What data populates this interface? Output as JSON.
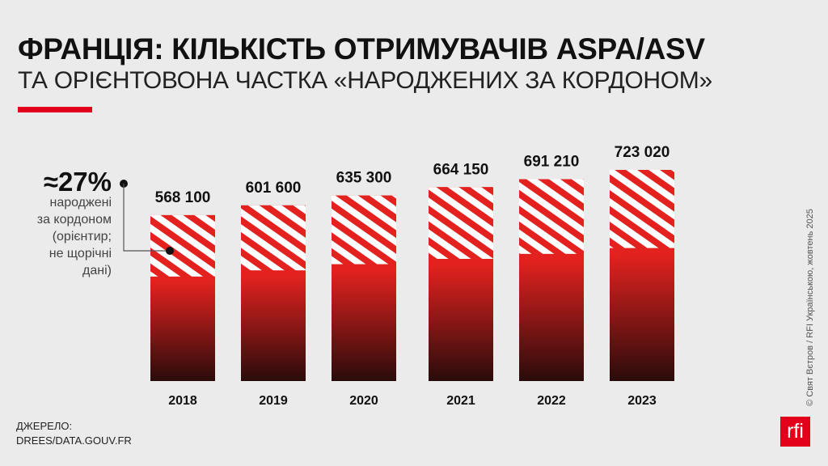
{
  "title": "ФРАНЦІЯ: КІЛЬКІСТЬ ОТРИМУВАЧІВ ASPA/ASV",
  "subtitle": "ТА ОРІЄНТОВОНА ЧАСТКА «НАРОДЖЕНИХ ЗА КОРДОНОМ»",
  "annotation": {
    "value": "≈27%",
    "lines": [
      "народжені",
      "за кордоном",
      "(орієнтир;",
      "не щорічні",
      "дані)"
    ]
  },
  "source": {
    "label": "ДЖЕРЕЛО:",
    "value": "DREES/DATA.GOUV.FR"
  },
  "credit": "© Свят Вєтров / RFI Українською, жовтень 2025",
  "logo": "rfi",
  "colors": {
    "bar": "#e3001b",
    "hatch": "#e3221f",
    "bg": "#ebebeb"
  },
  "chart_data": {
    "type": "bar",
    "categories": [
      "2018",
      "2019",
      "2020",
      "2021",
      "2022",
      "2023"
    ],
    "values": [
      568100,
      601600,
      635300,
      664150,
      691210,
      723020
    ],
    "labels": [
      "568 100",
      "601 600",
      "635 300",
      "664 150",
      "691 210",
      "723 020"
    ],
    "foreign_born_share": 0.27,
    "ylim": [
      0,
      723020
    ]
  }
}
